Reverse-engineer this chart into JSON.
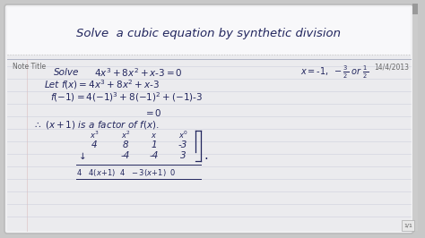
{
  "bg_outer": "#c8c8c8",
  "bg_main": "#f0f0f2",
  "bg_title_area": "#f5f5f7",
  "bg_body": "#eeeef2",
  "line_color": "#c5c8d8",
  "header_divider": "#b0b5c5",
  "ink_color": "#22265e",
  "note_title": "Note Title",
  "date_text": "14/4/2013",
  "title_text": "Solve  a cubic equation by synthetic division",
  "page_num": "1/1",
  "font_size_title": 9.5,
  "font_size_header": 5.5,
  "font_size_body": 7.5,
  "font_size_small": 6.0,
  "left_bar_color": "#888888",
  "right_bar_color": "#aaaaaa",
  "corner_color": "#999999"
}
